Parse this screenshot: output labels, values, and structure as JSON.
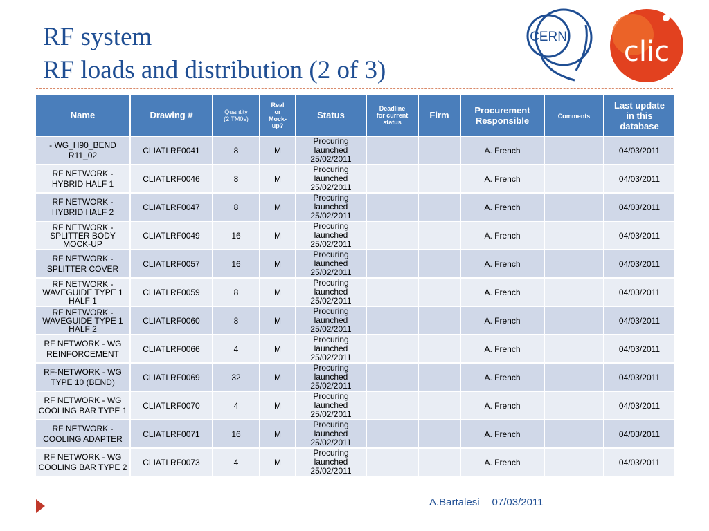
{
  "title": {
    "line1": "RF system",
    "line2": "RF loads and distribution (2 of 3)"
  },
  "logos": {
    "cern_text": "CERN",
    "clic_text": "clic",
    "cern_color": "#1f4e93",
    "clic_color": "#e2411f"
  },
  "table": {
    "headers": {
      "name": "Name",
      "drawing": "Drawing #",
      "quantity_line1": "Quantity",
      "quantity_line2": "(2 TM0s)",
      "real_line1": "Real",
      "real_line2": "or",
      "real_line3": "Mock-",
      "real_line4": "up?",
      "status": "Status",
      "deadline_line1": "Deadline",
      "deadline_line2": "for current",
      "deadline_line3": "status",
      "firm": "Firm",
      "procurement_line1": "Procurement",
      "procurement_line2": "Responsible",
      "comments": "Comments",
      "last_line1": "Last update",
      "last_line2": "in this",
      "last_line3": "database"
    },
    "rows": [
      {
        "name": "- WG_H90_BEND R11_02",
        "drawing": "CLIATLRF0041",
        "qty": "8",
        "real": "M",
        "status1": "Procuring launched",
        "status2": "25/02/2011",
        "deadline": "",
        "firm": "",
        "responsible": "A. French",
        "comments": "",
        "updated": "04/03/2011"
      },
      {
        "name": "RF NETWORK - HYBRID HALF 1",
        "drawing": "CLIATLRF0046",
        "qty": "8",
        "real": "M",
        "status1": "Procuring launched",
        "status2": "25/02/2011",
        "deadline": "",
        "firm": "",
        "responsible": "A. French",
        "comments": "",
        "updated": "04/03/2011"
      },
      {
        "name": "RF NETWORK - HYBRID HALF 2",
        "drawing": "CLIATLRF0047",
        "qty": "8",
        "real": "M",
        "status1": "Procuring launched",
        "status2": "25/02/2011",
        "deadline": "",
        "firm": "",
        "responsible": "A. French",
        "comments": "",
        "updated": "04/03/2011"
      },
      {
        "name": "RF NETWORK - SPLITTER BODY MOCK-UP",
        "drawing": "CLIATLRF0049",
        "qty": "16",
        "real": "M",
        "status1": "Procuring launched",
        "status2": "25/02/2011",
        "deadline": "",
        "firm": "",
        "responsible": "A. French",
        "comments": "",
        "updated": "04/03/2011"
      },
      {
        "name": "RF NETWORK - SPLITTER COVER",
        "drawing": "CLIATLRF0057",
        "qty": "16",
        "real": "M",
        "status1": "Procuring launched",
        "status2": "25/02/2011",
        "deadline": "",
        "firm": "",
        "responsible": "A. French",
        "comments": "",
        "updated": "04/03/2011"
      },
      {
        "name": "RF NETWORK - WAVEGUIDE TYPE 1 HALF 1",
        "drawing": "CLIATLRF0059",
        "qty": "8",
        "real": "M",
        "status1": "Procuring launched",
        "status2": "25/02/2011",
        "deadline": "",
        "firm": "",
        "responsible": "A. French",
        "comments": "",
        "updated": "04/03/2011"
      },
      {
        "name": "RF NETWORK - WAVEGUIDE TYPE 1 HALF 2",
        "drawing": "CLIATLRF0060",
        "qty": "8",
        "real": "M",
        "status1": "Procuring launched",
        "status2": "25/02/2011",
        "deadline": "",
        "firm": "",
        "responsible": "A. French",
        "comments": "",
        "updated": "04/03/2011"
      },
      {
        "name": "RF NETWORK - WG REINFORCEMENT",
        "drawing": "CLIATLRF0066",
        "qty": "4",
        "real": "M",
        "status1": "Procuring launched",
        "status2": "25/02/2011",
        "deadline": "",
        "firm": "",
        "responsible": "A. French",
        "comments": "",
        "updated": "04/03/2011"
      },
      {
        "name": "RF-NETWORK - WG TYPE 10 (BEND)",
        "drawing": "CLIATLRF0069",
        "qty": "32",
        "real": "M",
        "status1": "Procuring launched",
        "status2": "25/02/2011",
        "deadline": "",
        "firm": "",
        "responsible": "A. French",
        "comments": "",
        "updated": "04/03/2011"
      },
      {
        "name": "RF NETWORK - WG COOLING BAR TYPE 1",
        "drawing": "CLIATLRF0070",
        "qty": "4",
        "real": "M",
        "status1": "Procuring launched",
        "status2": "25/02/2011",
        "deadline": "",
        "firm": "",
        "responsible": "A. French",
        "comments": "",
        "updated": "04/03/2011"
      },
      {
        "name": "RF NETWORK - COOLING ADAPTER",
        "drawing": "CLIATLRF0071",
        "qty": "16",
        "real": "M",
        "status1": "Procuring launched",
        "status2": "25/02/2011",
        "deadline": "",
        "firm": "",
        "responsible": "A. French",
        "comments": "",
        "updated": "04/03/2011"
      },
      {
        "name": "RF NETWORK - WG COOLING BAR TYPE 2",
        "drawing": "CLIATLRF0073",
        "qty": "4",
        "real": "M",
        "status1": "Procuring launched",
        "status2": "25/02/2011",
        "deadline": "",
        "firm": "",
        "responsible": "A. French",
        "comments": "",
        "updated": "04/03/2011"
      }
    ]
  },
  "footer": {
    "author": "A.Bartalesi",
    "date": "07/03/2011"
  },
  "colors": {
    "header_bg": "#4a7ebb",
    "row_odd": "#d0d8e8",
    "row_even": "#e9edf4",
    "status_green": "#00a651",
    "title_blue": "#1f4e93"
  }
}
